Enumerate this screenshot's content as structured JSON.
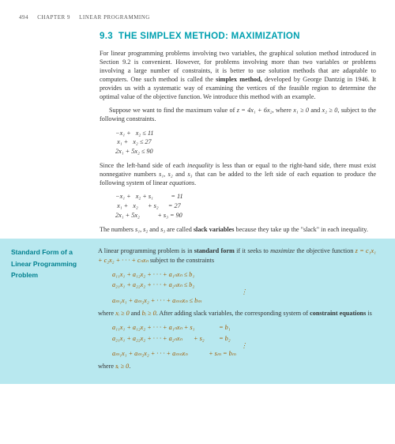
{
  "header": {
    "page_num": "494",
    "chapter": "CHAPTER 9",
    "title": "LINEAR PROGRAMMING"
  },
  "section": {
    "number": "9.3",
    "title": "THE SIMPLEX METHOD: MAXIMIZATION"
  },
  "para1": "For linear programming problems involving two variables, the graphical solution method introduced in Section 9.2 is convenient. However, for problems involving more than two variables or problems involving a large number of constraints, it is better to use solution methods that are adaptable to computers. One such method is called the ",
  "simplex_bold": "simplex method,",
  "para1b": " developed by George Dantzig in 1946. It provides us with a systematic way of examining the vertices of the feasible region to determine the optimal value of the objective function. We introduce this method with an example.",
  "para2a": "Suppose we want to find the maximum value of ",
  "para2_eq": "z = 4x₁ + 6x₂",
  "para2b": ", where ",
  "para2_c1": "x₁ ≥ 0",
  "para2_and": " and ",
  "para2_c2": "x₂ ≥ 0",
  "para2c": ", subject to the following constraints.",
  "eq1": {
    "r1": " −x₁ +   x₂ ≤ 11",
    "r2": "  x₁ +   x₂ ≤ 27",
    "r3": " 2x₁ + 5x₂ ≤ 90"
  },
  "para3a": "Since the left-hand side of each ",
  "inequality": "inequality",
  "para3b": " is less than or equal to the right-hand side, there must exist nonnegative numbers ",
  "s_list": "s₁, s₂",
  "para3_and": " and ",
  "s3": "s₃",
  "para3c": " that can be added to the left side of each equation to produce the following system of linear ",
  "equations": "equations",
  "period": ".",
  "eq2": {
    "r1": " −x₁ +   x₂ + s₁           = 11",
    "r2": "  x₁ +   x₂      + s₂      = 27",
    "r3": " 2x₁ + 5x₂           + s₃ = 90"
  },
  "para4a": "The numbers ",
  "para4_s": "s₁, s₂",
  "para4_and": " and ",
  "para4_s3": "s₃",
  "para4b": " are called ",
  "slack": "slack variables",
  "para4c": " because they take up the \"slack\" in each inequality.",
  "box": {
    "label_l1": "Standard Form of a",
    "label_l2": "Linear Programming",
    "label_l3": "Problem",
    "p1a": "A linear programming problem is in ",
    "std": "standard form",
    "p1b": " if it seeks to ",
    "max": "maximize",
    "p1c": " the objective function ",
    "obj": "z = c₁x₁ + c₂x₂ + · · · + cₙxₙ",
    "p1d": " subject to the constraints",
    "eq": {
      "r1": "a₁₁x₁ + a₁₂x₂ + · · · + a₁ₙxₙ ≤ b₁",
      "r2": "a₂₁x₁ + a₂₂x₂ + · · · + a₂ₙxₙ ≤ b₂",
      "vd": "⋮",
      "rm": "aₘ₁x₁ + aₘ₂x₂ + · · · + aₘₙxₙ ≤ bₘ"
    },
    "p2a": "where ",
    "xi": "xᵢ ≥ 0",
    "p2_and": " and ",
    "bi": "bᵢ ≥ 0",
    "p2b": ". After adding slack variables, the corresponding system of ",
    "ce": "constraint equations",
    "p2c": " is",
    "eq2": {
      "r1": "a₁₁x₁ + a₁₂x₂ + · · · + a₁ₙxₙ + s₁               = b₁",
      "r2": "a₂₁x₁ + a₂₂x₂ + · · · + a₂ₙxₙ       + s₂         = b₂",
      "vd": "⋮",
      "rm": "aₘ₁x₁ + aₘ₂x₂ + · · · + aₘₙxₙ             + sₘ = bₘ"
    },
    "p3a": "where ",
    "si": "sᵢ ≥ 0",
    "p3b": "."
  }
}
